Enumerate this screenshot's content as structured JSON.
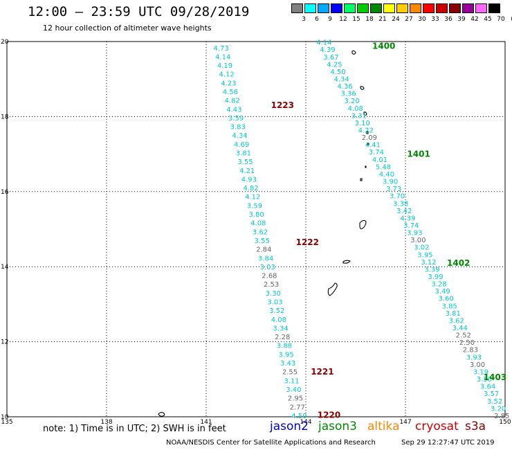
{
  "title": "12:00 – 23:59 UTC 09/28/2019",
  "subtitle": "12 hour collection of altimeter wave heights",
  "legend": {
    "unit": "(ft)",
    "bins": [
      {
        "label": "3",
        "color": "#808080"
      },
      {
        "label": "6",
        "color": "#00ffff"
      },
      {
        "label": "9",
        "color": "#00aaff"
      },
      {
        "label": "12",
        "color": "#0000ff"
      },
      {
        "label": "15",
        "color": "#00ff66"
      },
      {
        "label": "18",
        "color": "#00cc00"
      },
      {
        "label": "21",
        "color": "#008800"
      },
      {
        "label": "24",
        "color": "#ffff00"
      },
      {
        "label": "27",
        "color": "#ffcc00"
      },
      {
        "label": "30",
        "color": "#ff8800"
      },
      {
        "label": "33",
        "color": "#ff0000"
      },
      {
        "label": "36",
        "color": "#cc0000"
      },
      {
        "label": "39",
        "color": "#880000"
      },
      {
        "label": "42",
        "color": "#990099"
      },
      {
        "label": "45",
        "color": "#ff66ff"
      },
      {
        "label": "70",
        "color": "#000000"
      }
    ]
  },
  "axes": {
    "lon_ticks": [
      "135",
      "138",
      "141",
      "144",
      "147",
      "150"
    ],
    "lat_ticks": [
      "20",
      "18",
      "16",
      "14",
      "12",
      "10"
    ],
    "lon_range": [
      135,
      150
    ],
    "lat_range": [
      10,
      20
    ]
  },
  "track_colors": {
    "cyan": "#00cccc",
    "gray": "#666666"
  },
  "time_colors": {
    "green": "#008800",
    "darkred": "#880000"
  },
  "tracks": [
    {
      "name": "cryosat",
      "lon_start": 141.45,
      "lat_start": 19.82,
      "lon_end": 143.8,
      "lat_end": 10.02,
      "values": [
        {
          "v": "4.73",
          "c": "cyan"
        },
        {
          "v": "4.14",
          "c": "cyan"
        },
        {
          "v": "4.19",
          "c": "cyan"
        },
        {
          "v": "4.12",
          "c": "cyan"
        },
        {
          "v": "4.23",
          "c": "cyan"
        },
        {
          "v": "4.56",
          "c": "cyan"
        },
        {
          "v": "4.82",
          "c": "cyan"
        },
        {
          "v": "4.43",
          "c": "cyan"
        },
        {
          "v": "3.59",
          "c": "cyan"
        },
        {
          "v": "3.83",
          "c": "cyan"
        },
        {
          "v": "4.34",
          "c": "cyan"
        },
        {
          "v": "4.69",
          "c": "cyan"
        },
        {
          "v": "3.81",
          "c": "cyan"
        },
        {
          "v": "3.55",
          "c": "cyan"
        },
        {
          "v": "4.21",
          "c": "cyan"
        },
        {
          "v": "4.93",
          "c": "cyan"
        },
        {
          "v": "4.82",
          "c": "cyan"
        },
        {
          "v": "4.12",
          "c": "cyan"
        },
        {
          "v": "3.59",
          "c": "cyan"
        },
        {
          "v": "3.80",
          "c": "cyan"
        },
        {
          "v": "4.08",
          "c": "cyan"
        },
        {
          "v": "3.62",
          "c": "cyan"
        },
        {
          "v": "3.55",
          "c": "cyan"
        },
        {
          "v": "2.84",
          "c": "gray"
        },
        {
          "v": "3.84",
          "c": "cyan"
        },
        {
          "v": "3.03",
          "c": "cyan"
        },
        {
          "v": "2.68",
          "c": "gray"
        },
        {
          "v": "2.53",
          "c": "gray"
        },
        {
          "v": "3.30",
          "c": "cyan"
        },
        {
          "v": "3.03",
          "c": "cyan"
        },
        {
          "v": "3.52",
          "c": "cyan"
        },
        {
          "v": "4.08",
          "c": "cyan"
        },
        {
          "v": "3.34",
          "c": "cyan"
        },
        {
          "v": "2.28",
          "c": "gray"
        },
        {
          "v": "3.88",
          "c": "cyan"
        },
        {
          "v": "3.95",
          "c": "cyan"
        },
        {
          "v": "3.43",
          "c": "cyan"
        },
        {
          "v": "2.55",
          "c": "gray"
        },
        {
          "v": "3.11",
          "c": "cyan"
        },
        {
          "v": "3.40",
          "c": "cyan"
        },
        {
          "v": "2.95",
          "c": "gray"
        },
        {
          "v": "2.77",
          "c": "gray"
        },
        {
          "v": "4.50",
          "c": "cyan"
        }
      ]
    },
    {
      "name": "jason3",
      "lon_start": 144.55,
      "lat_start": 19.97,
      "lon_end": 149.9,
      "lat_end": 10.02,
      "values": [
        {
          "v": "4.14",
          "c": "cyan"
        },
        {
          "v": "4.39",
          "c": "cyan"
        },
        {
          "v": "3.67",
          "c": "cyan"
        },
        {
          "v": "4.25",
          "c": "cyan"
        },
        {
          "v": "4.50",
          "c": "cyan"
        },
        {
          "v": "4.34",
          "c": "cyan"
        },
        {
          "v": "4.36",
          "c": "cyan"
        },
        {
          "v": "3.36",
          "c": "cyan"
        },
        {
          "v": "3.20",
          "c": "cyan"
        },
        {
          "v": "4.08",
          "c": "cyan"
        },
        {
          "v": "3.31",
          "c": "cyan"
        },
        {
          "v": "3.10",
          "c": "cyan"
        },
        {
          "v": "4.22",
          "c": "cyan"
        },
        {
          "v": "2.09",
          "c": "gray"
        },
        {
          "v": "4.41",
          "c": "cyan"
        },
        {
          "v": "3.74",
          "c": "cyan"
        },
        {
          "v": "4.01",
          "c": "cyan"
        },
        {
          "v": "5.48",
          "c": "cyan"
        },
        {
          "v": "4.40",
          "c": "cyan"
        },
        {
          "v": "3.90",
          "c": "cyan"
        },
        {
          "v": "3.73",
          "c": "cyan"
        },
        {
          "v": "3.70",
          "c": "cyan"
        },
        {
          "v": "3.38",
          "c": "cyan"
        },
        {
          "v": "3.42",
          "c": "cyan"
        },
        {
          "v": "4.39",
          "c": "cyan"
        },
        {
          "v": "3.74",
          "c": "cyan"
        },
        {
          "v": "3.93",
          "c": "cyan"
        },
        {
          "v": "3.00",
          "c": "gray"
        },
        {
          "v": "3.02",
          "c": "cyan"
        },
        {
          "v": "3.95",
          "c": "cyan"
        },
        {
          "v": "3.12",
          "c": "cyan"
        },
        {
          "v": "3.39",
          "c": "cyan"
        },
        {
          "v": "3.99",
          "c": "cyan"
        },
        {
          "v": "3.28",
          "c": "cyan"
        },
        {
          "v": "3.49",
          "c": "cyan"
        },
        {
          "v": "3.60",
          "c": "cyan"
        },
        {
          "v": "3.85",
          "c": "cyan"
        },
        {
          "v": "3.81",
          "c": "cyan"
        },
        {
          "v": "3.62",
          "c": "cyan"
        },
        {
          "v": "3.44",
          "c": "cyan"
        },
        {
          "v": "2.52",
          "c": "gray"
        },
        {
          "v": "2.50",
          "c": "gray"
        },
        {
          "v": "2.83",
          "c": "gray"
        },
        {
          "v": "3.93",
          "c": "cyan"
        },
        {
          "v": "3.00",
          "c": "gray"
        },
        {
          "v": "3.19",
          "c": "cyan"
        },
        {
          "v": "3.50",
          "c": "cyan"
        },
        {
          "v": "3.64",
          "c": "cyan"
        },
        {
          "v": "3.57",
          "c": "cyan"
        },
        {
          "v": "3.52",
          "c": "cyan"
        },
        {
          "v": "3.20",
          "c": "cyan"
        },
        {
          "v": "2.85",
          "c": "gray"
        }
      ]
    }
  ],
  "times": [
    {
      "t": "1400",
      "c": "green",
      "lon": 146.0,
      "lat": 19.88
    },
    {
      "t": "1401",
      "c": "green",
      "lon": 147.05,
      "lat": 17.0
    },
    {
      "t": "1402",
      "c": "green",
      "lon": 148.25,
      "lat": 14.1
    },
    {
      "t": "1403",
      "c": "green",
      "lon": 149.35,
      "lat": 11.05
    },
    {
      "t": "1223",
      "c": "darkred",
      "lon": 142.95,
      "lat": 18.3
    },
    {
      "t": "1222",
      "c": "darkred",
      "lon": 143.7,
      "lat": 14.65
    },
    {
      "t": "1221",
      "c": "darkred",
      "lon": 144.15,
      "lat": 11.2
    },
    {
      "t": "1220",
      "c": "darkred",
      "lon": 144.35,
      "lat": 10.05
    }
  ],
  "note": "note: 1) Time is in UTC; 2) SWH is in feet",
  "satellites": [
    {
      "name": "jason2",
      "color": "#0000cc"
    },
    {
      "name": "jason3",
      "color": "#008800"
    },
    {
      "name": "altika",
      "color": "#ff8800"
    },
    {
      "name": "cryosat",
      "color": "#cc0000"
    },
    {
      "name": "s3a",
      "color": "#880000"
    }
  ],
  "credit": "NOAA/NESDIS Center for Satellite Applications and Research",
  "timestamp": "Sep 29 12:27:47 UTC 2019"
}
